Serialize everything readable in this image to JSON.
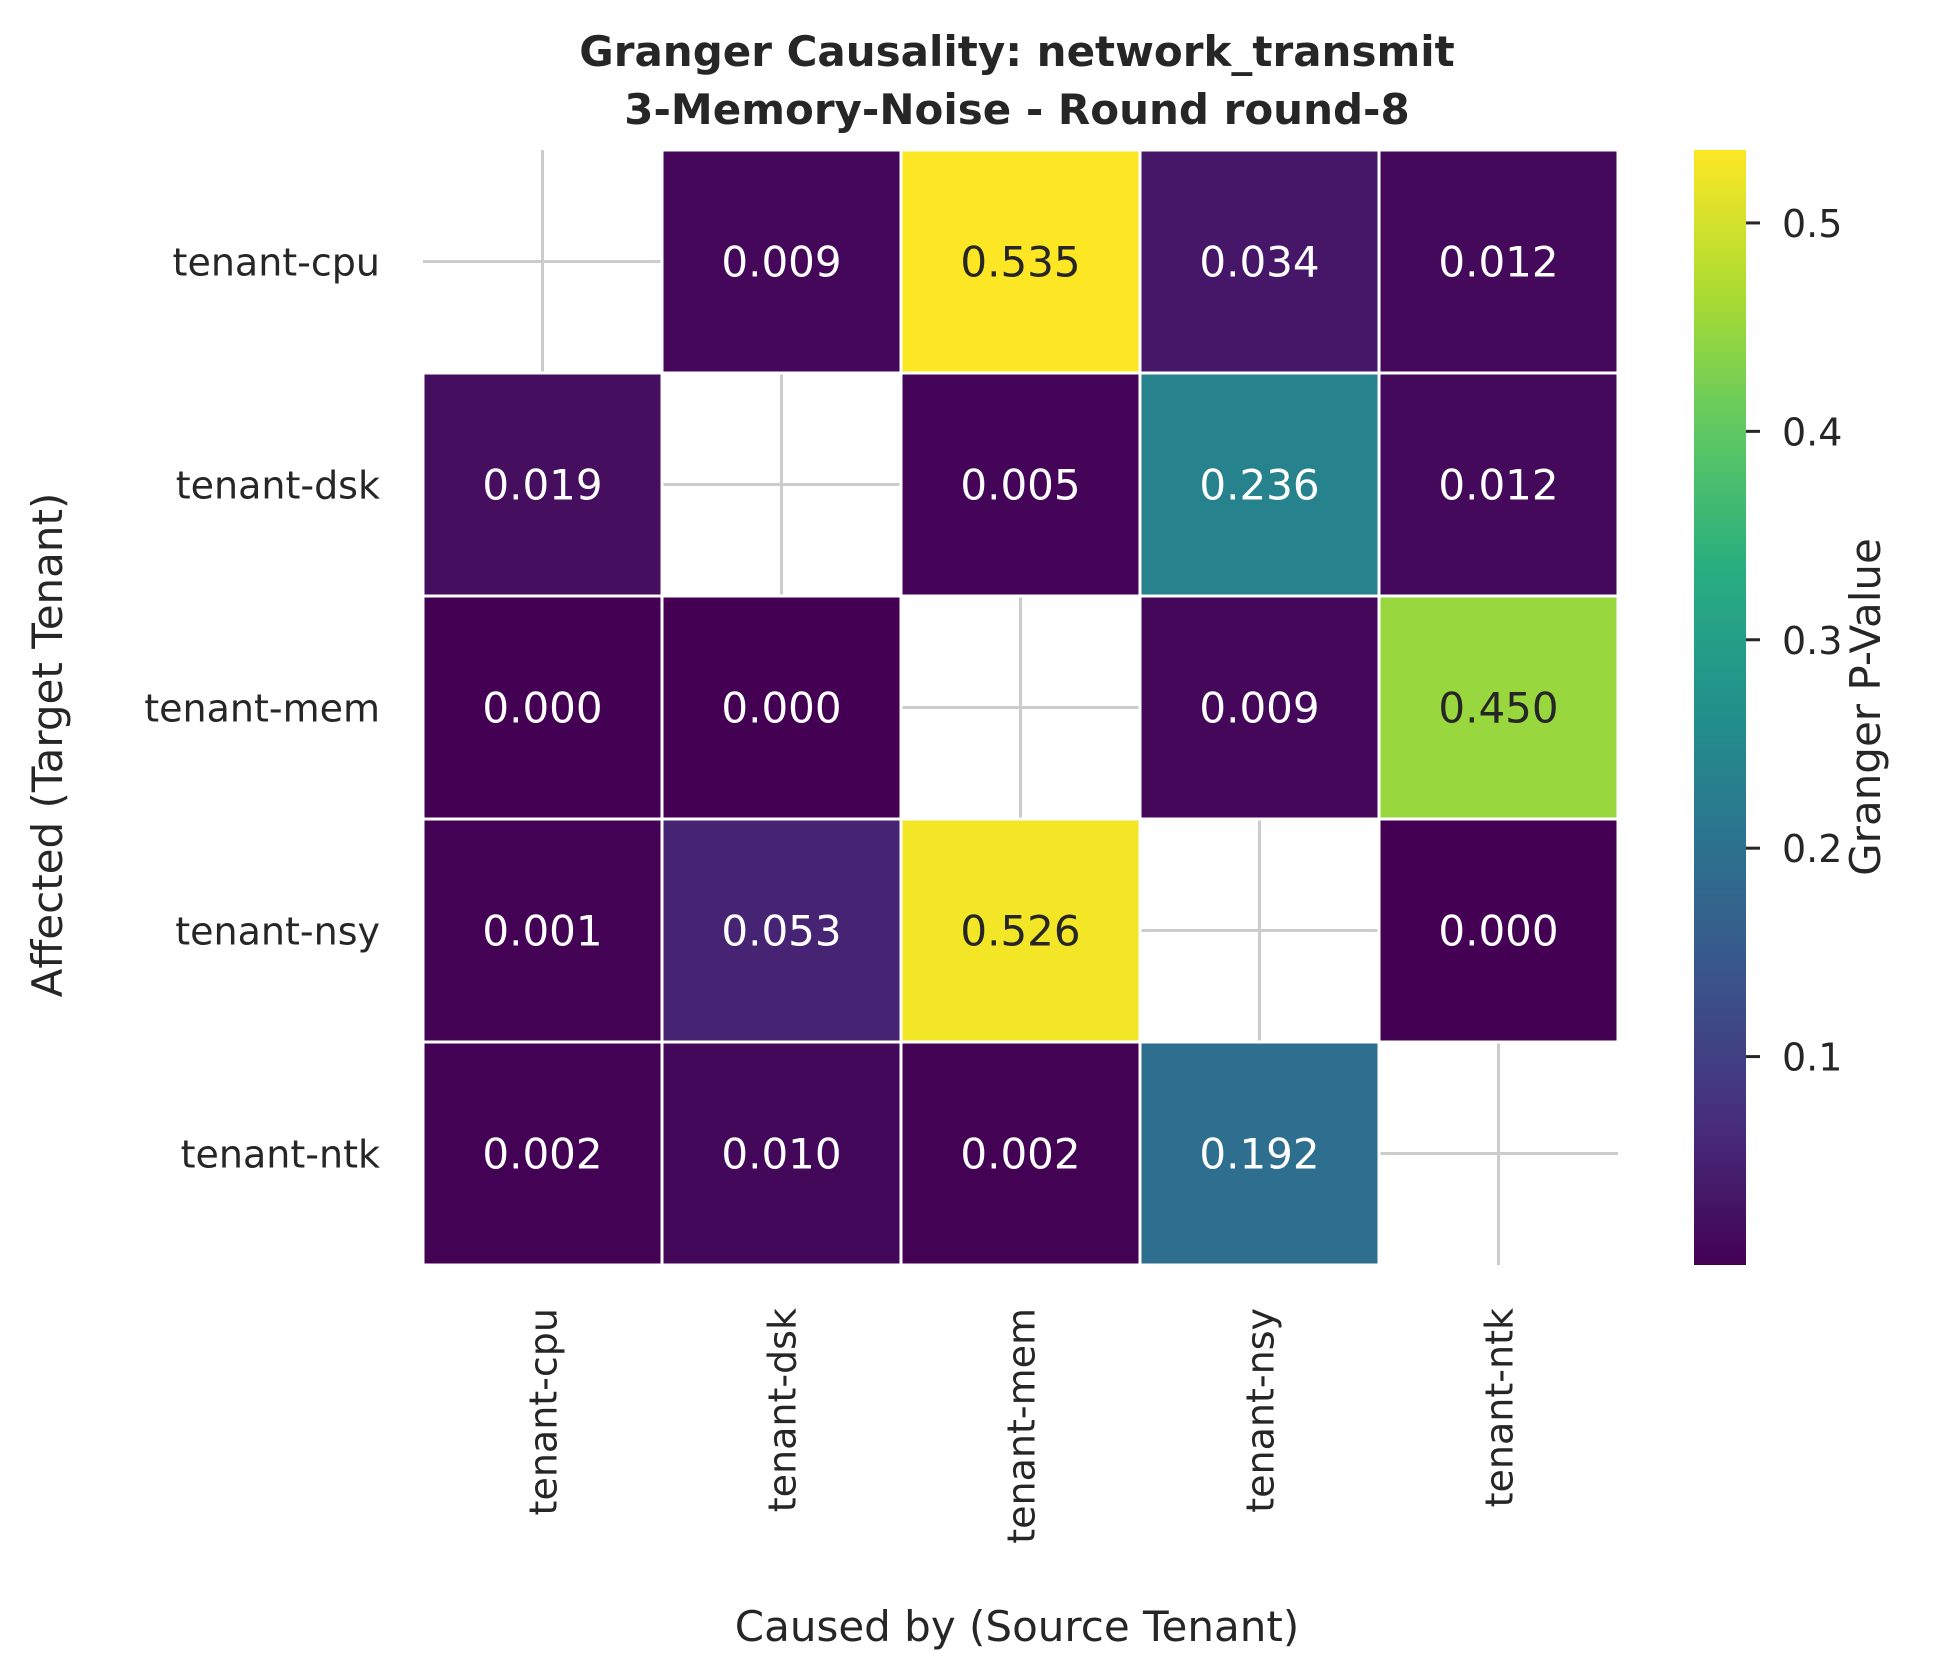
{
  "chart_data": {
    "type": "heatmap",
    "title": "Granger Causality: network_transmit",
    "subtitle": "3-Memory-Noise - Round round-8",
    "xlabel": "Caused by (Source Tenant)",
    "ylabel": "Affected (Target Tenant)",
    "x_categories": [
      "tenant-cpu",
      "tenant-dsk",
      "tenant-mem",
      "tenant-nsy",
      "tenant-ntk"
    ],
    "y_categories": [
      "tenant-cpu",
      "tenant-dsk",
      "tenant-mem",
      "tenant-nsy",
      "tenant-ntk"
    ],
    "values": [
      [
        null,
        0.009,
        0.535,
        0.034,
        0.012
      ],
      [
        0.019,
        null,
        0.005,
        0.236,
        0.012
      ],
      [
        0.0,
        0.0,
        null,
        0.009,
        0.45
      ],
      [
        0.001,
        0.053,
        0.526,
        null,
        0.0
      ],
      [
        0.002,
        0.01,
        0.002,
        0.192,
        null
      ]
    ],
    "value_labels": [
      [
        "",
        "0.009",
        "0.535",
        "0.034",
        "0.012"
      ],
      [
        "0.019",
        "",
        "0.005",
        "0.236",
        "0.012"
      ],
      [
        "0.000",
        "0.000",
        "",
        "0.009",
        "0.450"
      ],
      [
        "0.001",
        "0.053",
        "0.526",
        "",
        "0.000"
      ],
      [
        "0.002",
        "0.010",
        "0.002",
        "0.192",
        ""
      ]
    ],
    "colormap": "viridis",
    "colorbar": {
      "label": "Granger P-Value",
      "range": [
        0.0,
        0.535
      ],
      "ticks": [
        0.1,
        0.2,
        0.3,
        0.4,
        0.5
      ],
      "tick_labels": [
        "0.1",
        "0.2",
        "0.3",
        "0.4",
        "0.5"
      ]
    },
    "grid": true
  }
}
